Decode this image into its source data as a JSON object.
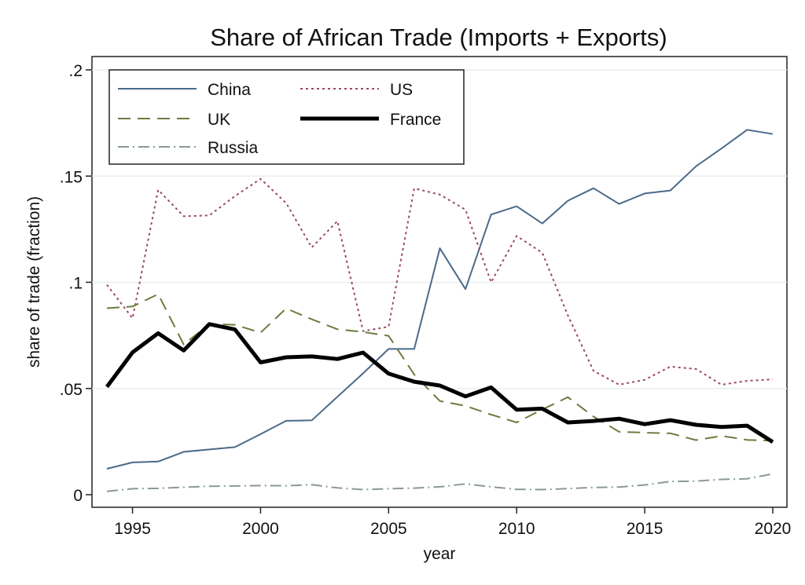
{
  "chart_data": {
    "type": "line",
    "title": "Share of African Trade (Imports + Exports)",
    "xlabel": "year",
    "ylabel": "share of trade (fraction)",
    "xlim": [
      1994,
      2020
    ],
    "ylim": [
      0,
      0.2
    ],
    "x_ticks": [
      1995,
      2000,
      2005,
      2010,
      2015,
      2020
    ],
    "x_tick_labels": [
      "1995",
      "2000",
      "2005",
      "2010",
      "2015",
      "2020"
    ],
    "y_ticks": [
      0,
      0.05,
      0.1,
      0.15,
      0.2
    ],
    "y_tick_labels": [
      "0",
      ".05",
      ".1",
      ".15",
      ".2"
    ],
    "grid": true,
    "legend_position": "top-left",
    "x": [
      1994,
      1995,
      1996,
      1997,
      1998,
      1999,
      2000,
      2001,
      2002,
      2003,
      2004,
      2005,
      2006,
      2007,
      2008,
      2009,
      2010,
      2011,
      2012,
      2013,
      2014,
      2015,
      2016,
      2017,
      2018,
      2019,
      2020
    ],
    "series": [
      {
        "name": "China",
        "color": "#4a6a8a",
        "dash": "solid",
        "width": 2,
        "values": [
          0.0122,
          0.0152,
          0.0156,
          0.0202,
          0.0213,
          0.0224,
          0.0285,
          0.0348,
          0.035,
          0.0461,
          0.0571,
          0.0686,
          0.0686,
          0.116,
          0.0968,
          0.1319,
          0.1358,
          0.1277,
          0.1384,
          0.1443,
          0.1369,
          0.1418,
          0.1432,
          0.1546,
          0.163,
          0.1718,
          0.1698
        ]
      },
      {
        "name": "US",
        "color": "#9b4a5a",
        "dash": "short-dot",
        "width": 2,
        "values": [
          0.0988,
          0.0831,
          0.1435,
          0.1311,
          0.1315,
          0.1406,
          0.1487,
          0.1373,
          0.1164,
          0.1288,
          0.077,
          0.0791,
          0.1442,
          0.1413,
          0.1342,
          0.1,
          0.1218,
          0.1139,
          0.0844,
          0.0583,
          0.0518,
          0.0541,
          0.0603,
          0.0592,
          0.0518,
          0.0536,
          0.0543
        ]
      },
      {
        "name": "UK",
        "color": "#6b7d3e",
        "dash": "long-dash",
        "width": 2,
        "values": [
          0.0878,
          0.0886,
          0.0944,
          0.0707,
          0.0804,
          0.08,
          0.0763,
          0.0877,
          0.0826,
          0.0779,
          0.0766,
          0.0748,
          0.0566,
          0.0441,
          0.0418,
          0.0377,
          0.034,
          0.0401,
          0.0459,
          0.0368,
          0.0296,
          0.0292,
          0.0289,
          0.0257,
          0.0277,
          0.0258,
          0.0254
        ]
      },
      {
        "name": "France",
        "color": "#000000",
        "dash": "solid",
        "width": 5,
        "values": [
          0.0508,
          0.067,
          0.076,
          0.0679,
          0.0803,
          0.0778,
          0.0623,
          0.0647,
          0.0651,
          0.0639,
          0.0669,
          0.057,
          0.0532,
          0.0514,
          0.0463,
          0.0505,
          0.04,
          0.0405,
          0.034,
          0.0347,
          0.0358,
          0.0332,
          0.0351,
          0.0329,
          0.0319,
          0.0325,
          0.0248
        ]
      },
      {
        "name": "Russia",
        "color": "#8a9a94",
        "dash": "dash-dot",
        "width": 2,
        "values": [
          0.0016,
          0.0028,
          0.003,
          0.0035,
          0.004,
          0.0041,
          0.0043,
          0.0042,
          0.0047,
          0.0032,
          0.0024,
          0.0028,
          0.0031,
          0.0037,
          0.0051,
          0.0037,
          0.0025,
          0.0024,
          0.0029,
          0.0034,
          0.0036,
          0.0046,
          0.0062,
          0.0064,
          0.0072,
          0.0075,
          0.0098
        ]
      }
    ],
    "legend_rows": [
      [
        "China",
        "US"
      ],
      [
        "UK",
        "France"
      ],
      [
        "Russia"
      ]
    ]
  }
}
